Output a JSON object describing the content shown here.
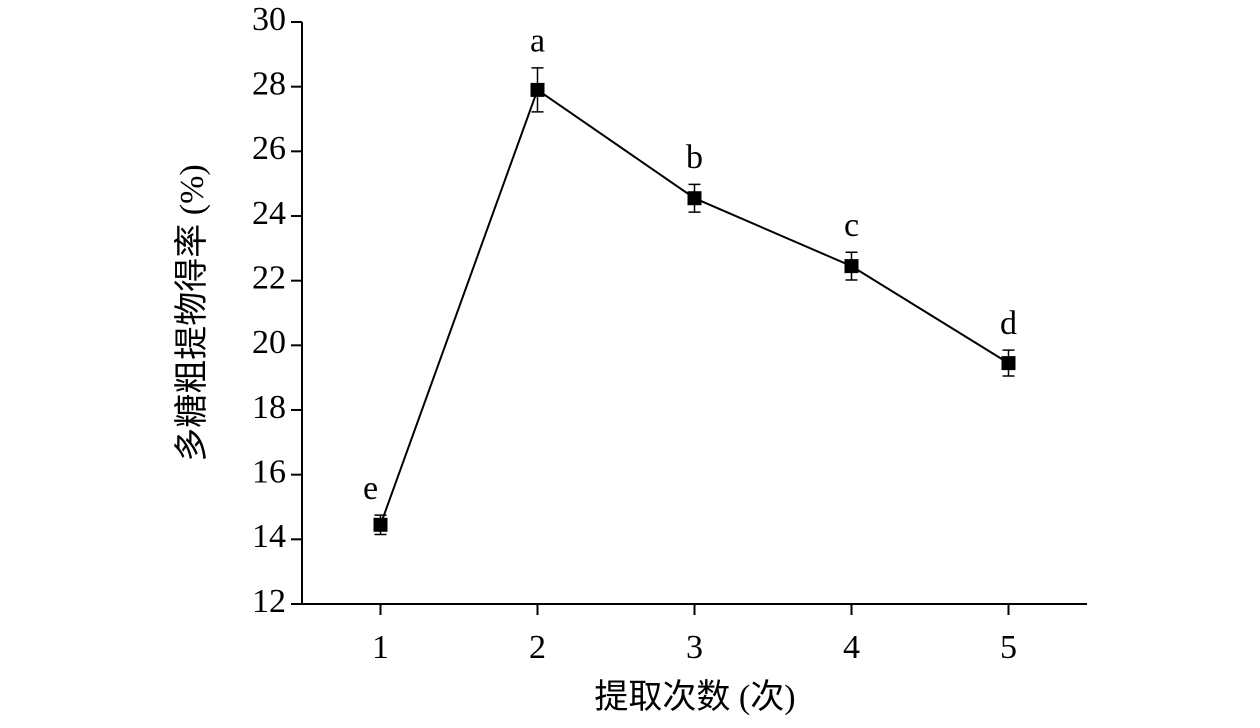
{
  "chart_data": {
    "type": "line",
    "x_label": "提取次数 (次)",
    "y_label": "多糖粗提物得率 (%)",
    "x": [
      1,
      2,
      3,
      4,
      5
    ],
    "series": [
      {
        "color": "#000000",
        "values": [
          14.45,
          27.9,
          24.55,
          22.45,
          19.45
        ],
        "errors": [
          0.3,
          0.68,
          0.43,
          0.43,
          0.4
        ],
        "annotations": [
          "e",
          "a",
          "b",
          "c",
          "d"
        ]
      }
    ],
    "xlim": [
      0.5,
      5.5
    ],
    "xticks": [
      1,
      2,
      3,
      4,
      5
    ],
    "ylim": [
      12,
      30
    ],
    "yticks": [
      12,
      14,
      16,
      18,
      20,
      22,
      24,
      26,
      28,
      30
    ],
    "grid": false
  }
}
